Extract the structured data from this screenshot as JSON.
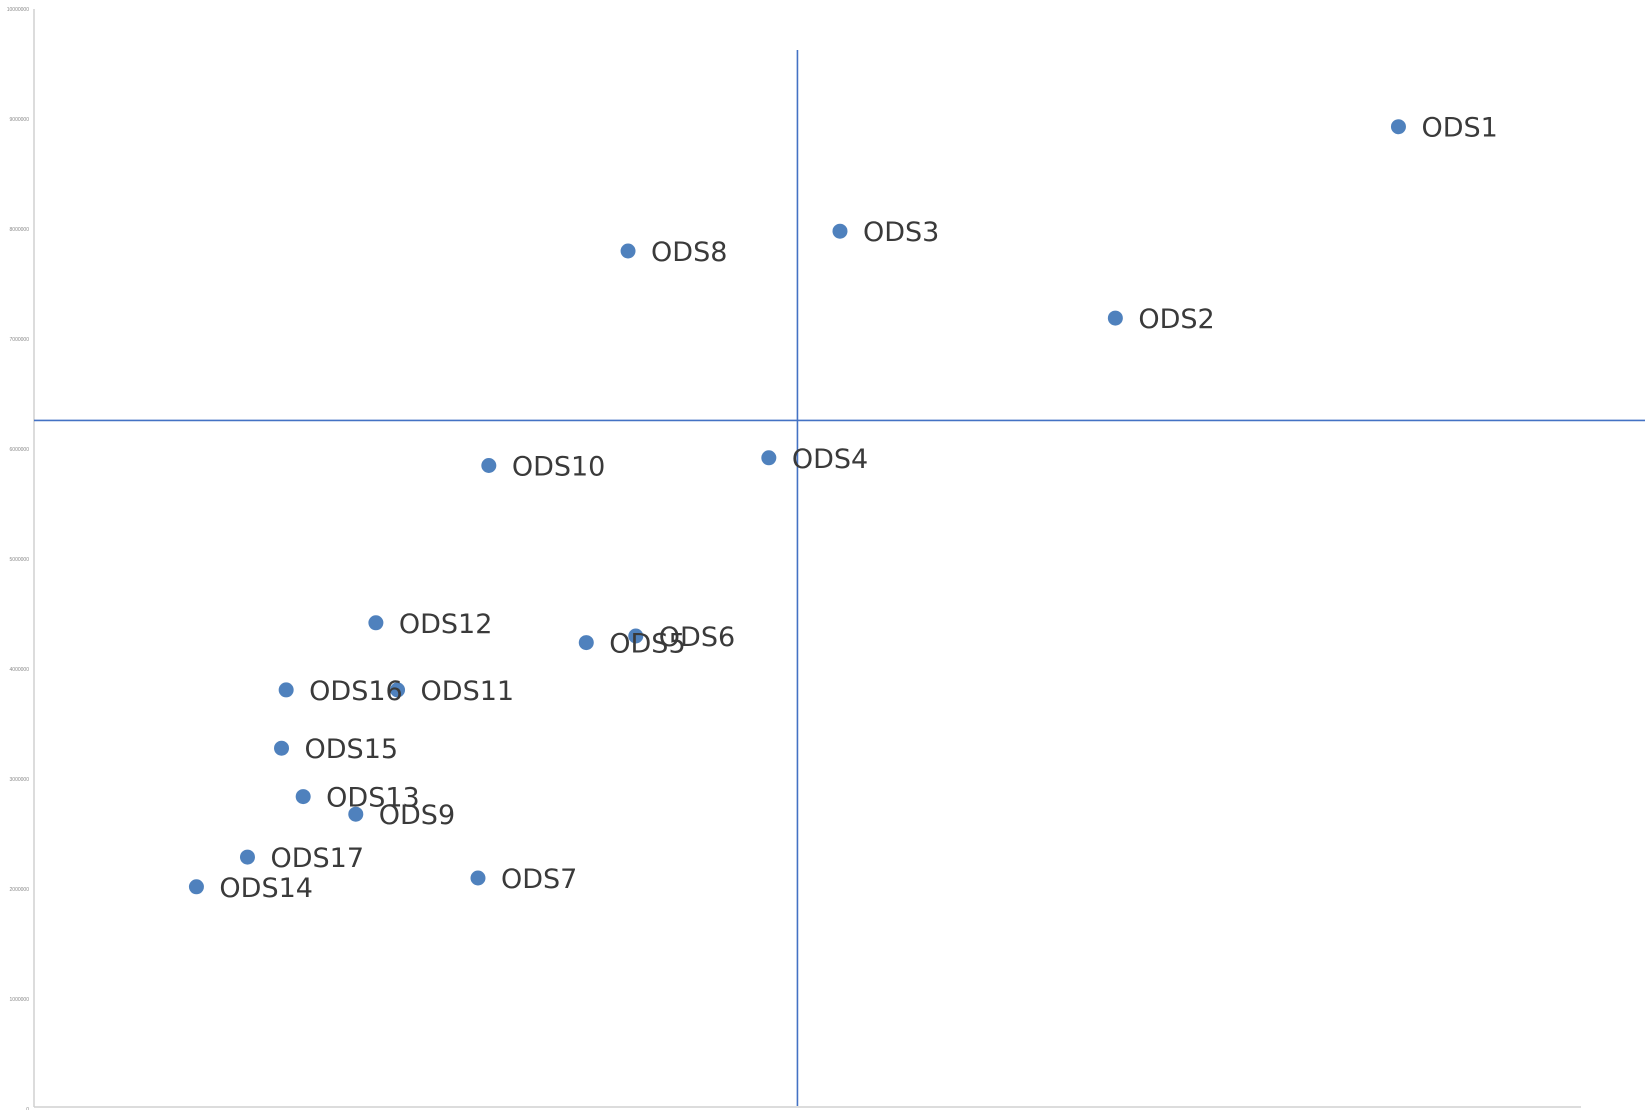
{
  "chart_data": {
    "type": "scatter",
    "title": "",
    "xlabel": "",
    "ylabel": "",
    "ylim": [
      0,
      10000000
    ],
    "y_ticks": [
      "0",
      "1000000",
      "2000000",
      "3000000",
      "4000000",
      "5000000",
      "6000000",
      "7000000",
      "8000000",
      "9000000",
      "10000000"
    ],
    "x_tick_labels_shown": false,
    "grid": false,
    "legend": "none",
    "quadrant_lines": {
      "x": 0.4935,
      "y": 6260000
    },
    "points": [
      {
        "label": "ODS1",
        "x": 0.882,
        "y": 8930000
      },
      {
        "label": "ODS2",
        "x": 0.699,
        "y": 7190000
      },
      {
        "label": "ODS3",
        "x": 0.521,
        "y": 7980000
      },
      {
        "label": "ODS4",
        "x": 0.475,
        "y": 5920000
      },
      {
        "label": "ODS5",
        "x": 0.357,
        "y": 4240000
      },
      {
        "label": "ODS6",
        "x": 0.389,
        "y": 4300000
      },
      {
        "label": "ODS7",
        "x": 0.287,
        "y": 2100000
      },
      {
        "label": "ODS8",
        "x": 0.384,
        "y": 7800000
      },
      {
        "label": "ODS9",
        "x": 0.208,
        "y": 2680000
      },
      {
        "label": "ODS10",
        "x": 0.294,
        "y": 5850000
      },
      {
        "label": "ODS11",
        "x": 0.235,
        "y": 3810000
      },
      {
        "label": "ODS12",
        "x": 0.221,
        "y": 4420000
      },
      {
        "label": "ODS13",
        "x": 0.174,
        "y": 2840000
      },
      {
        "label": "ODS14",
        "x": 0.105,
        "y": 2020000
      },
      {
        "label": "ODS15",
        "x": 0.16,
        "y": 3280000
      },
      {
        "label": "ODS16",
        "x": 0.163,
        "y": 3810000
      },
      {
        "label": "ODS17",
        "x": 0.138,
        "y": 2290000
      }
    ],
    "colors": {
      "marker": "#4f81bd",
      "quadrant_line": "#4472c4",
      "axis": "#d0d0d0",
      "label": "#3a3a3a",
      "tick_label": "#888888"
    }
  }
}
